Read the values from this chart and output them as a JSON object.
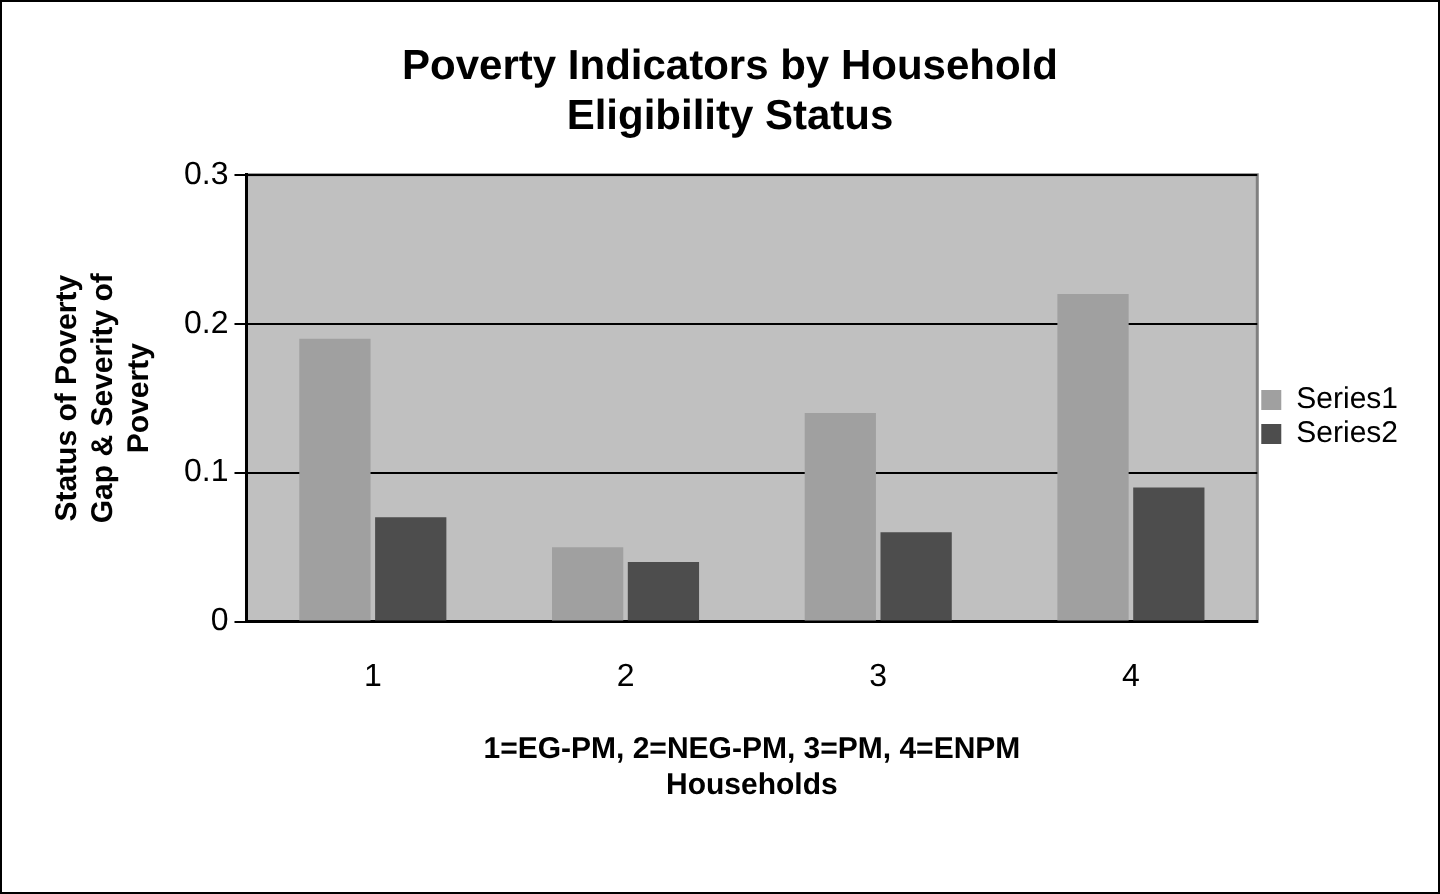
{
  "chart_data": {
    "type": "bar",
    "title": "Poverty Indicators by Household Eligibility Status",
    "xlabel": "1=EG-PM, 2=NEG-PM, 3=PM, 4=ENPM Households",
    "ylabel": "Status of Poverty Gap & Severity of Poverty",
    "categories": [
      "1",
      "2",
      "3",
      "4"
    ],
    "series": [
      {
        "name": "Series1",
        "color": "#a0a0a0",
        "values": [
          0.19,
          0.05,
          0.14,
          0.22
        ]
      },
      {
        "name": "Series2",
        "color": "#4d4d4d",
        "values": [
          0.07,
          0.04,
          0.06,
          0.09
        ]
      }
    ],
    "ylim": [
      0,
      0.3
    ],
    "yticks": [
      0,
      0.1,
      0.2,
      0.3
    ],
    "grid": "y",
    "legend": "right"
  }
}
